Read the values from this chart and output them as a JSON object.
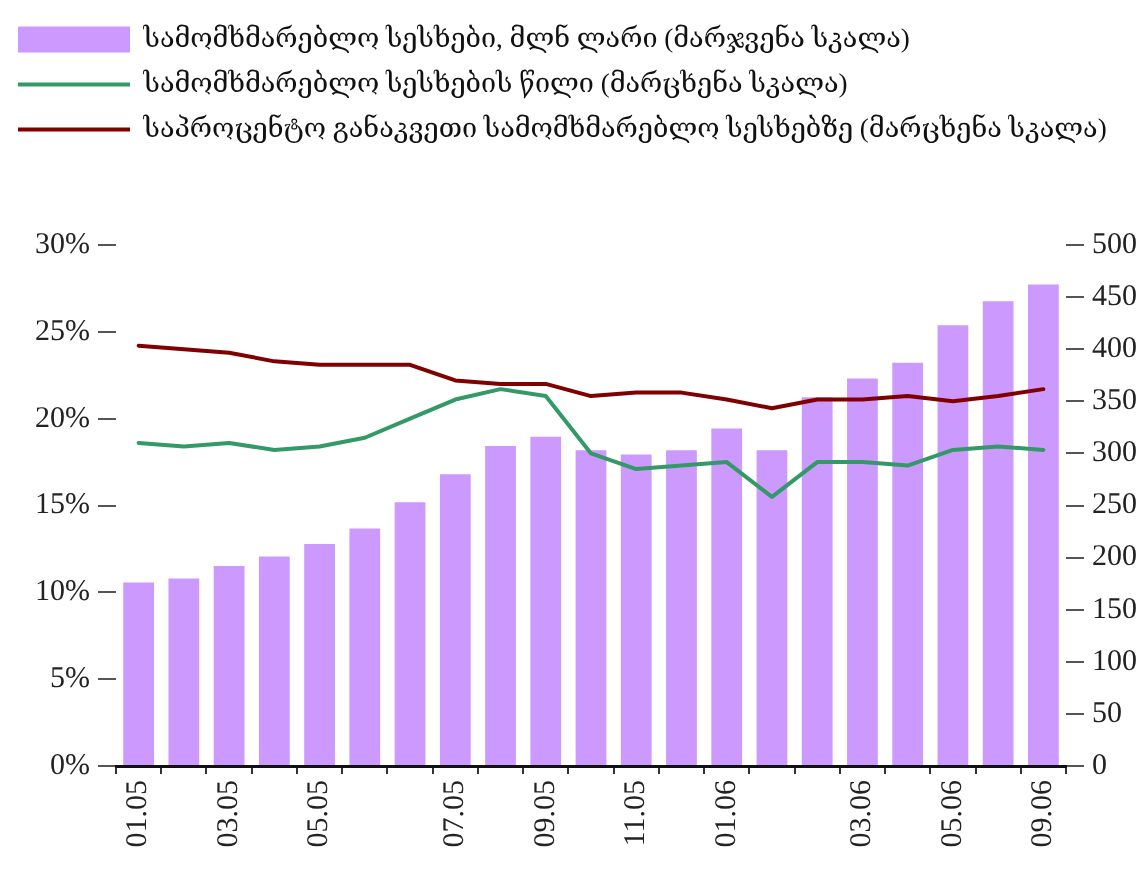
{
  "chart_data": {
    "type": "bar",
    "categories": [
      "01.05",
      null,
      "03.05",
      null,
      "05.05",
      null,
      null,
      "07.05",
      null,
      "09.05",
      null,
      "11.05",
      null,
      "01.06",
      null,
      null,
      "03.06",
      null,
      "05.06",
      null,
      "09.06"
    ],
    "series": [
      {
        "name": "სამომხმარებლო სესხები, მლნ ლარი (მარჯვენა სკალა)",
        "axis": "y2",
        "color": "#cc99ff",
        "values": [
          176,
          180,
          192,
          201,
          213,
          228,
          253,
          280,
          307,
          316,
          303,
          299,
          303,
          324,
          303,
          354,
          372,
          387,
          423,
          446,
          462
        ]
      },
      {
        "name": "სამომხმარებლო სესხების წილი (მარცხენა სკალა)",
        "type": "line",
        "color": "#339966",
        "values": [
          18.6,
          18.4,
          18.6,
          18.2,
          18.4,
          18.9,
          20.0,
          21.1,
          21.7,
          21.3,
          18.0,
          17.1,
          17.3,
          17.5,
          15.5,
          17.5,
          17.5,
          17.3,
          18.2,
          18.4,
          18.2
        ]
      },
      {
        "name": "საპროცენტო განაკვეთი სამომხმარებლო სესხებზე (მარცხენა სკალა)",
        "type": "line",
        "color": "#800000",
        "values": [
          24.2,
          24.0,
          23.8,
          23.3,
          23.1,
          23.1,
          23.1,
          22.2,
          22.0,
          22.0,
          21.3,
          21.5,
          21.5,
          21.1,
          20.6,
          21.1,
          21.1,
          21.3,
          21.0,
          21.3,
          21.7
        ]
      }
    ],
    "ylim": [
      0,
      30
    ],
    "yticks": [
      {
        "value": 0,
        "label": "0%"
      },
      {
        "value": 5,
        "label": "5%"
      },
      {
        "value": 10,
        "label": "10%"
      },
      {
        "value": 15,
        "label": "15%"
      },
      {
        "value": 20,
        "label": "20%"
      },
      {
        "value": 25,
        "label": "25%"
      },
      {
        "value": 30,
        "label": "30%"
      }
    ],
    "y2lim": [
      0,
      500
    ],
    "y2ticks": [
      0,
      50,
      100,
      150,
      200,
      250,
      300,
      350,
      400,
      450,
      500
    ],
    "legend": "top left",
    "grid": false,
    "marker": "none",
    "line_style": "solid"
  }
}
